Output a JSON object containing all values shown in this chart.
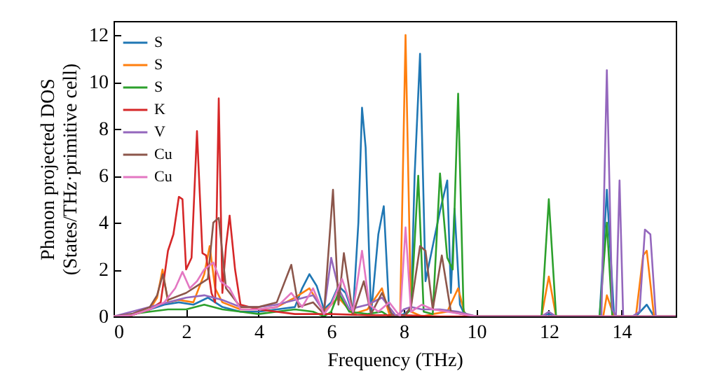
{
  "chart_data": {
    "type": "line",
    "xlabel": "Frequency (THz)",
    "ylabel": "Phonon projected DOS\n(States/THz·primitive cell)",
    "xlim": [
      0,
      15.5
    ],
    "ylim": [
      0,
      12.6
    ],
    "xticks": [
      0,
      2,
      4,
      6,
      8,
      10,
      12,
      14
    ],
    "yticks": [
      0,
      2,
      4,
      6,
      8,
      10,
      12
    ],
    "legend": "top left",
    "marker": "none",
    "line_style": "solid",
    "grid": false,
    "series": [
      {
        "name": "S",
        "color": "#1f77b4",
        "x": [
          0,
          0.5,
          1,
          1.4,
          1.8,
          2.2,
          2.6,
          3,
          3.5,
          4,
          4.5,
          5,
          5.2,
          5.4,
          5.6,
          5.8,
          6,
          6.2,
          6.4,
          6.6,
          6.75,
          6.85,
          6.95,
          7.1,
          7.3,
          7.45,
          7.6,
          7.8,
          8,
          8.2,
          8.3,
          8.45,
          8.6,
          8.8,
          9.0,
          9.2,
          9.3,
          9.4,
          9.55,
          9.7,
          10,
          11.8,
          12,
          12.2,
          13.4,
          13.6,
          13.8,
          14.4,
          14.7,
          14.9,
          15.5
        ],
        "values": [
          0,
          0.05,
          0.3,
          0.5,
          0.6,
          0.5,
          0.8,
          0.4,
          0.2,
          0.2,
          0.3,
          0.4,
          1.2,
          1.8,
          1.3,
          0.3,
          0.6,
          1.3,
          1.0,
          0.1,
          4.0,
          8.9,
          7.2,
          0.1,
          3.5,
          4.7,
          0.2,
          0,
          0.1,
          0.3,
          6.0,
          11.2,
          1.5,
          3.0,
          4.5,
          5.8,
          1.0,
          4.6,
          0.5,
          0,
          0,
          0,
          0.1,
          0,
          0,
          5.4,
          0,
          0,
          0.5,
          0,
          0
        ]
      },
      {
        "name": "S",
        "color": "#ff7f0e",
        "x": [
          0,
          0.5,
          1,
          1.2,
          1.35,
          1.5,
          1.8,
          2.2,
          2.5,
          2.65,
          2.8,
          3,
          3.5,
          4,
          4.5,
          5,
          5.4,
          5.8,
          6,
          6.2,
          6.6,
          7,
          7.4,
          7.6,
          7.9,
          8.05,
          8.2,
          8.5,
          8.8,
          9.2,
          9.5,
          9.7,
          11.8,
          12,
          12.2,
          13.5,
          13.6,
          13.8,
          14.4,
          14.6,
          14.7,
          14.9,
          15.5
        ],
        "values": [
          0,
          0.05,
          0.3,
          0.8,
          2.0,
          0.6,
          0.7,
          0.6,
          1.8,
          3.0,
          1.2,
          0.6,
          0.3,
          0.3,
          0.4,
          0.8,
          1.2,
          0.2,
          0.5,
          0.8,
          0.1,
          0.3,
          1.2,
          0.1,
          0,
          12.0,
          0.2,
          0,
          0.1,
          0.2,
          1.2,
          0,
          0,
          1.7,
          0,
          0,
          0.9,
          0,
          0,
          2.6,
          2.8,
          0,
          0
        ]
      },
      {
        "name": "S",
        "color": "#2ca02c",
        "x": [
          0,
          1,
          1.5,
          2,
          2.5,
          3,
          3.5,
          4,
          4.5,
          5,
          5.5,
          5.8,
          6,
          6.2,
          6.5,
          7,
          7.4,
          7.6,
          8,
          8.2,
          8.4,
          8.55,
          8.8,
          9.0,
          9.2,
          9.35,
          9.5,
          9.65,
          9.8,
          11.8,
          12,
          12.2,
          13.4,
          13.6,
          13.75,
          14,
          15.5
        ],
        "values": [
          0,
          0.2,
          0.3,
          0.3,
          0.5,
          0.3,
          0.2,
          0.1,
          0.2,
          0.3,
          0.2,
          0,
          0.2,
          1.0,
          0.2,
          0.1,
          0.2,
          0,
          0,
          0.3,
          6.0,
          0.2,
          0.1,
          6.1,
          2.5,
          2.0,
          9.5,
          0.2,
          0,
          0,
          5.0,
          0,
          0,
          4.0,
          0,
          0,
          0
        ]
      },
      {
        "name": "K",
        "color": "#d62728",
        "x": [
          0,
          0.5,
          1,
          1.3,
          1.5,
          1.65,
          1.8,
          1.9,
          2.0,
          2.15,
          2.3,
          2.45,
          2.55,
          2.7,
          2.8,
          2.9,
          3.0,
          3.1,
          3.2,
          3.35,
          3.5,
          4,
          5,
          6,
          7,
          8,
          9,
          15.5
        ],
        "values": [
          0,
          0.05,
          0.3,
          0.6,
          2.8,
          3.5,
          5.1,
          5.0,
          2.0,
          2.5,
          7.9,
          2.7,
          2.6,
          1.0,
          0.6,
          9.3,
          1.0,
          3.0,
          4.3,
          2.0,
          0.5,
          0.3,
          0.1,
          0.1,
          0.05,
          0.05,
          0,
          0
        ]
      },
      {
        "name": "V",
        "color": "#9467bd",
        "x": [
          0,
          1,
          1.5,
          2,
          2.5,
          3,
          3.5,
          4,
          4.5,
          5,
          5.5,
          5.8,
          6,
          6.2,
          6.5,
          7,
          7.4,
          7.8,
          8,
          8.2,
          8.5,
          9,
          9.5,
          10,
          11.8,
          12,
          12.2,
          13.45,
          13.6,
          13.75,
          13.85,
          13.95,
          14.05,
          14.3,
          14.5,
          14.65,
          14.8,
          14.95,
          15.5
        ],
        "values": [
          0,
          0.4,
          0.6,
          0.8,
          0.9,
          0.7,
          0.4,
          0.4,
          0.5,
          0.7,
          0.9,
          0.2,
          2.5,
          1.2,
          0.3,
          0.5,
          0.8,
          0,
          0.3,
          0.4,
          0.3,
          0.3,
          0.2,
          0,
          0,
          0.2,
          0,
          0,
          10.5,
          0.3,
          0,
          5.8,
          0,
          0,
          0.2,
          3.7,
          3.5,
          0,
          0
        ]
      },
      {
        "name": "Cu",
        "color": "#8c564b",
        "x": [
          0,
          0.5,
          1,
          1.2,
          1.36,
          1.5,
          2,
          2.4,
          2.6,
          2.75,
          2.9,
          3.1,
          3.5,
          4,
          4.5,
          4.9,
          5.1,
          5.5,
          5.8,
          6.05,
          6.2,
          6.35,
          6.6,
          6.9,
          7.1,
          7.4,
          7.7,
          8,
          8.2,
          8.45,
          8.6,
          8.8,
          9.05,
          9.3,
          9.6,
          10,
          15.5
        ],
        "values": [
          0,
          0.1,
          0.4,
          0.9,
          1.8,
          0.7,
          1.0,
          1.4,
          1.6,
          4.0,
          4.2,
          1.2,
          0.4,
          0.4,
          0.6,
          2.2,
          0.4,
          0.6,
          0.1,
          5.4,
          0.5,
          2.7,
          0.1,
          1.5,
          0.1,
          1.0,
          0,
          0,
          0.4,
          3.0,
          2.8,
          0.3,
          2.6,
          0.2,
          0.1,
          0,
          0
        ]
      },
      {
        "name": "Cu",
        "color": "#e377c2",
        "x": [
          0,
          0.5,
          1,
          1.4,
          1.7,
          1.9,
          2.1,
          2.3,
          2.5,
          2.75,
          2.95,
          3.2,
          3.5,
          4,
          4.5,
          4.9,
          5.2,
          5.5,
          5.8,
          6.0,
          6.3,
          6.6,
          6.85,
          7.05,
          7.3,
          7.6,
          7.9,
          8.05,
          8.2,
          8.5,
          8.8,
          9.2,
          9.6,
          10,
          15.5
        ],
        "values": [
          0,
          0.05,
          0.3,
          0.6,
          1.2,
          1.9,
          1.2,
          1.5,
          2.0,
          2.3,
          1.5,
          1.2,
          0.3,
          0.3,
          0.4,
          1.0,
          0.4,
          1.2,
          0.1,
          0.5,
          1.6,
          0.2,
          2.8,
          0.5,
          0.2,
          0.6,
          0,
          3.8,
          0.2,
          0.5,
          0.3,
          0.2,
          0.1,
          0,
          0
        ]
      }
    ]
  }
}
